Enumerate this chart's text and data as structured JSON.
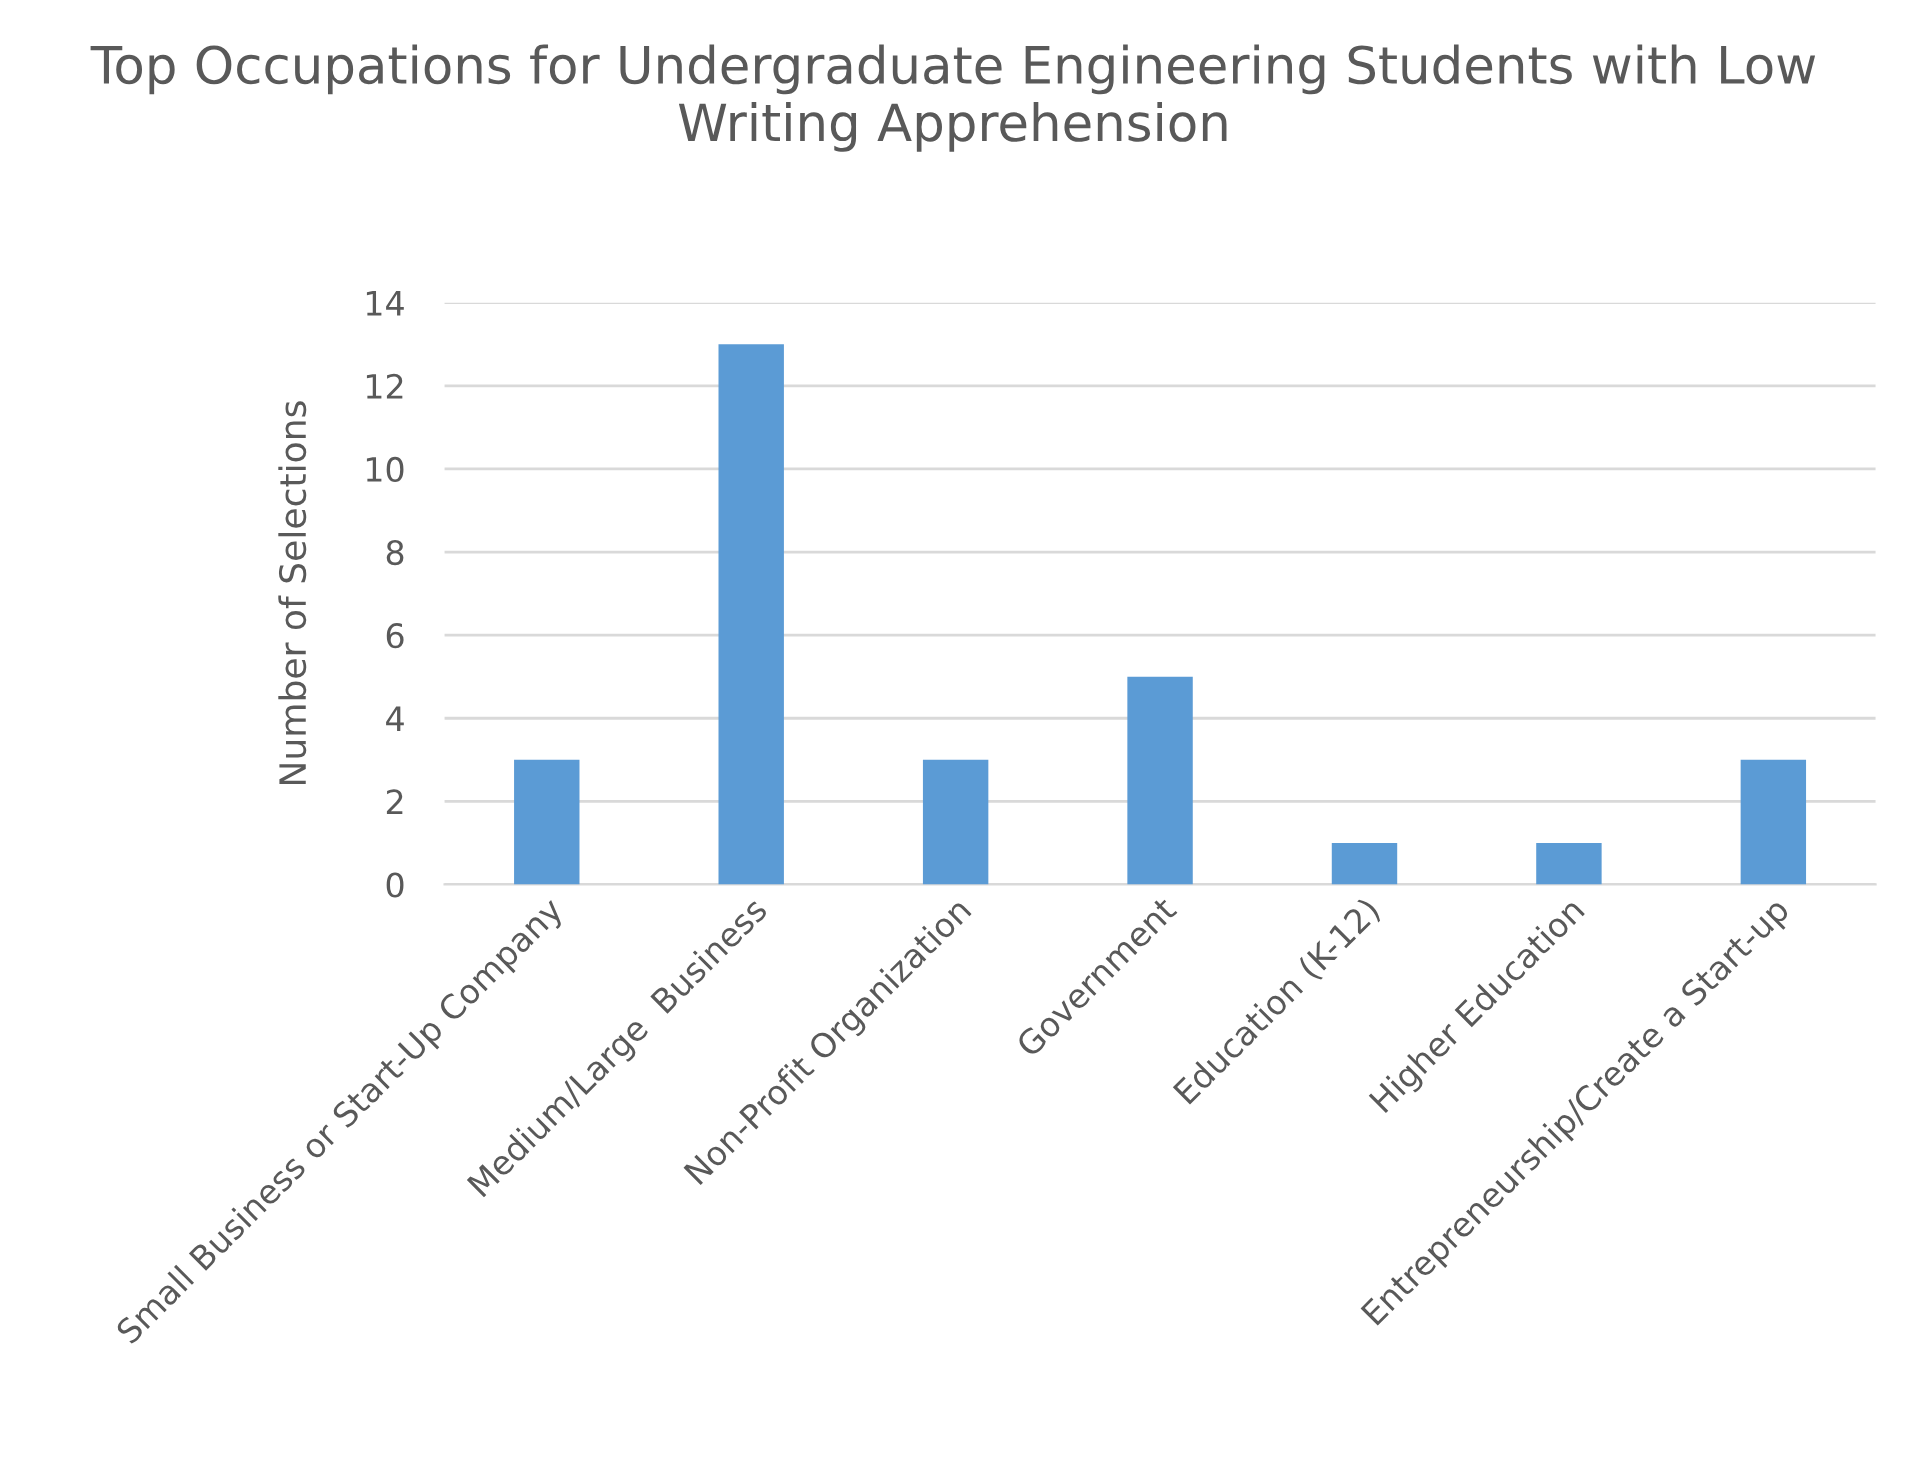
{
  "chart_data": {
    "type": "bar",
    "title": "Top Occupations for Undergraduate Engineering Students with Low Writing Apprehension",
    "ylabel": "Number of Selections",
    "categories": [
      "Small Business or Start-Up Company",
      "Medium/Large  Business",
      "Non-Profit Organization",
      "Government",
      "Education (K-12)",
      "Higher Education",
      "Entrepreneurship/Create a Start-up"
    ],
    "values": [
      3,
      13,
      3,
      5,
      1,
      1,
      3
    ],
    "color": "#5b9bd5",
    "ylim": [
      0,
      14
    ],
    "yticks": [
      0,
      2,
      4,
      6,
      8,
      10,
      12,
      14
    ],
    "grid": "y",
    "legend": false
  }
}
